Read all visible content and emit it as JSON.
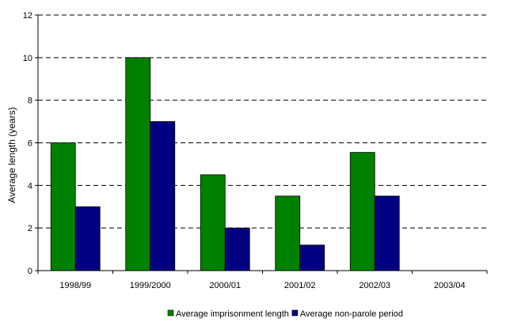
{
  "chart_data": {
    "type": "bar",
    "title": "",
    "xlabel": "",
    "ylabel": "Average length (years)",
    "categories": [
      "1998/99",
      "1999/2000",
      "2000/01",
      "2001/02",
      "2002/03",
      "2003/04"
    ],
    "series": [
      {
        "name": "Average imprisonment length",
        "color": "#008000",
        "values": [
          6,
          10,
          4.5,
          3.5,
          5.55,
          null
        ]
      },
      {
        "name": "Average non-parole period",
        "color": "#000080",
        "values": [
          3,
          7,
          2,
          1.2,
          3.5,
          null
        ]
      }
    ],
    "ylim": [
      0,
      12
    ],
    "yticks": [
      0,
      2,
      4,
      6,
      8,
      10,
      12
    ],
    "grid": "horizontal-dashed",
    "legend_position": "bottom-center"
  }
}
